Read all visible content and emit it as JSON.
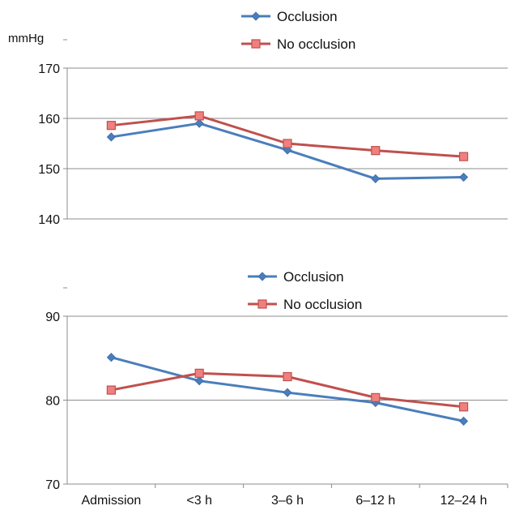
{
  "chart_data": [
    {
      "type": "line",
      "ylabel": "mmHg",
      "ylim": [
        140,
        170
      ],
      "yticks": [
        140,
        150,
        160,
        170
      ],
      "grid": true,
      "legend": "top-center",
      "categories": [
        "Admission",
        "<3 h",
        "3–6 h",
        "6–12 h",
        "12–24 h"
      ],
      "series": [
        {
          "name": "Occlusion",
          "color": "#4a7ebb",
          "marker": "diamond",
          "values": [
            156.3,
            159.0,
            153.7,
            148.0,
            148.3
          ]
        },
        {
          "name": "No occlusion",
          "color": "#c0504d",
          "marker": "square",
          "values": [
            158.6,
            160.5,
            155.0,
            153.6,
            152.4
          ]
        }
      ]
    },
    {
      "type": "line",
      "ylim": [
        70,
        90
      ],
      "yticks": [
        70,
        80,
        90
      ],
      "grid": true,
      "legend": "top-center",
      "categories": [
        "Admission",
        "<3 h",
        "3–6 h",
        "6–12 h",
        "12–24 h"
      ],
      "series": [
        {
          "name": "Occlusion",
          "color": "#4a7ebb",
          "marker": "diamond",
          "values": [
            85.1,
            82.3,
            80.9,
            79.7,
            77.5
          ]
        },
        {
          "name": "No occlusion",
          "color": "#c0504d",
          "marker": "square",
          "values": [
            81.2,
            83.2,
            82.8,
            80.3,
            79.2
          ]
        }
      ]
    }
  ]
}
